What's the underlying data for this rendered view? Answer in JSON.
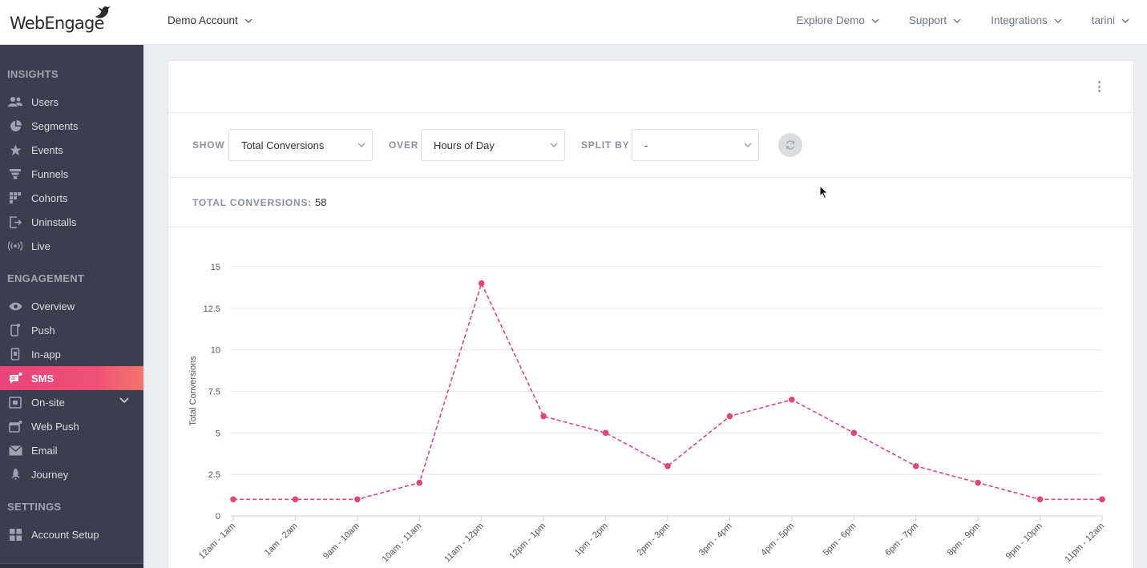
{
  "brand": {
    "logo_text": "WebEngage",
    "accent": "#e6447c"
  },
  "account": {
    "label": "Demo Account"
  },
  "topnav": [
    {
      "label": "Explore Demo"
    },
    {
      "label": "Support"
    },
    {
      "label": "Integrations"
    },
    {
      "label": "tarini"
    }
  ],
  "sidebar": {
    "sections": [
      {
        "title": "INSIGHTS"
      },
      {
        "title": "ENGAGEMENT"
      },
      {
        "title": "SETTINGS"
      }
    ],
    "items": [
      {
        "label": "Users",
        "icon": "users-icon"
      },
      {
        "label": "Segments",
        "icon": "pie-icon"
      },
      {
        "label": "Events",
        "icon": "star-icon"
      },
      {
        "label": "Funnels",
        "icon": "funnel-icon"
      },
      {
        "label": "Cohorts",
        "icon": "grid-icon"
      },
      {
        "label": "Uninstalls",
        "icon": "exit-icon"
      },
      {
        "label": "Live",
        "icon": "broadcast-icon"
      },
      {
        "label": "Overview",
        "icon": "eye-icon"
      },
      {
        "label": "Push",
        "icon": "phone-icon"
      },
      {
        "label": "In-app",
        "icon": "phone-icon"
      },
      {
        "label": "SMS",
        "icon": "chat-icon",
        "active": true
      },
      {
        "label": "On-site",
        "icon": "window-icon"
      },
      {
        "label": "Web Push",
        "icon": "browser-icon"
      },
      {
        "label": "Email",
        "icon": "mail-icon"
      },
      {
        "label": "Journey",
        "icon": "rocket-icon"
      },
      {
        "label": "Account Setup",
        "icon": "apps-icon"
      }
    ]
  },
  "controls": {
    "show_label": "SHOW",
    "show_value": "Total Conversions",
    "over_label": "OVER",
    "over_value": "Hours of Day",
    "split_label": "SPLIT BY",
    "split_value": "-"
  },
  "summary": {
    "label": "TOTAL CONVERSIONS:",
    "value": "58"
  },
  "chart_data": {
    "type": "line",
    "title": "",
    "xlabel": "",
    "ylabel": "Total Conversions",
    "ylim": [
      0,
      15
    ],
    "yticks": [
      "0",
      "2.5",
      "5",
      "7.5",
      "10",
      "12.5",
      "15"
    ],
    "grid": true,
    "line_style": "dashed",
    "color": "#e0457e",
    "categories": [
      "12am - 1am",
      "1am - 2am",
      "9am - 10am",
      "10am - 11am",
      "11am - 12pm",
      "12pm - 1pm",
      "1pm - 2pm",
      "2pm - 3pm",
      "3pm - 4pm",
      "4pm - 5pm",
      "5pm - 6pm",
      "6pm - 7pm",
      "8pm - 9pm",
      "9pm - 10pm",
      "11pm - 12am"
    ],
    "values": [
      1,
      1,
      1,
      2,
      14,
      6,
      5,
      3,
      6,
      7,
      5,
      3,
      2,
      1,
      1
    ]
  }
}
